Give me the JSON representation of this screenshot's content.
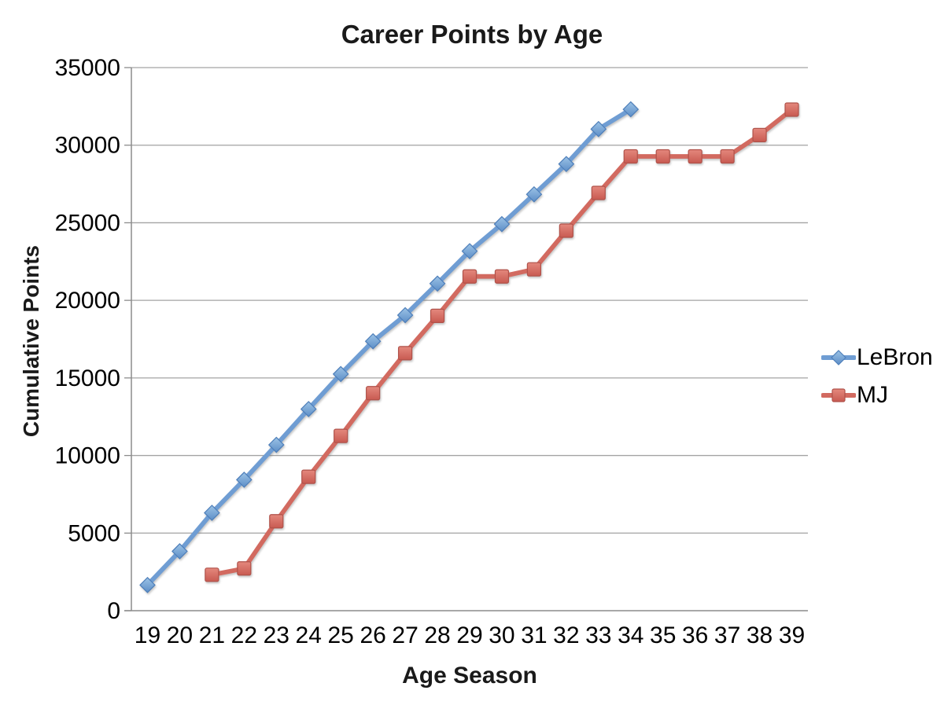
{
  "chart_data": {
    "type": "line",
    "title": "Career Points by Age",
    "xlabel": "Age Season",
    "ylabel": "Cumulative Points",
    "x": [
      19,
      20,
      21,
      22,
      23,
      24,
      25,
      26,
      27,
      28,
      29,
      30,
      31,
      32,
      33,
      34,
      35,
      36,
      37,
      38,
      39
    ],
    "ylim": [
      0,
      35000
    ],
    "y_ticks": [
      0,
      5000,
      10000,
      15000,
      20000,
      25000,
      30000,
      35000
    ],
    "grid": true,
    "legend_position": "right",
    "style": {
      "grid_color": "#a3a3a3",
      "axis_color": "#8c8c8c",
      "text_color": "#000000"
    },
    "series": [
      {
        "name": "LeBron",
        "marker": "diamond",
        "color": "#6f9dd3",
        "marker_fill_top": "#9cc3e6",
        "marker_fill_bottom": "#5d8ec7",
        "marker_stroke": "#4e7fba",
        "values": [
          1654,
          3829,
          6307,
          8439,
          10689,
          12993,
          15251,
          17362,
          19045,
          21081,
          23170,
          24913,
          26833,
          28787,
          31038,
          32311,
          null,
          null,
          null,
          null,
          null
        ]
      },
      {
        "name": "MJ",
        "marker": "square",
        "color": "#d26a60",
        "marker_fill_top": "#e4887d",
        "marker_fill_bottom": "#c85a51",
        "marker_stroke": "#b0524a",
        "values": [
          null,
          null,
          2313,
          2721,
          5762,
          8630,
          11263,
          14016,
          16596,
          19000,
          21541,
          21541,
          21998,
          24489,
          26920,
          29277,
          29277,
          29277,
          29277,
          30652,
          32292
        ]
      }
    ]
  }
}
